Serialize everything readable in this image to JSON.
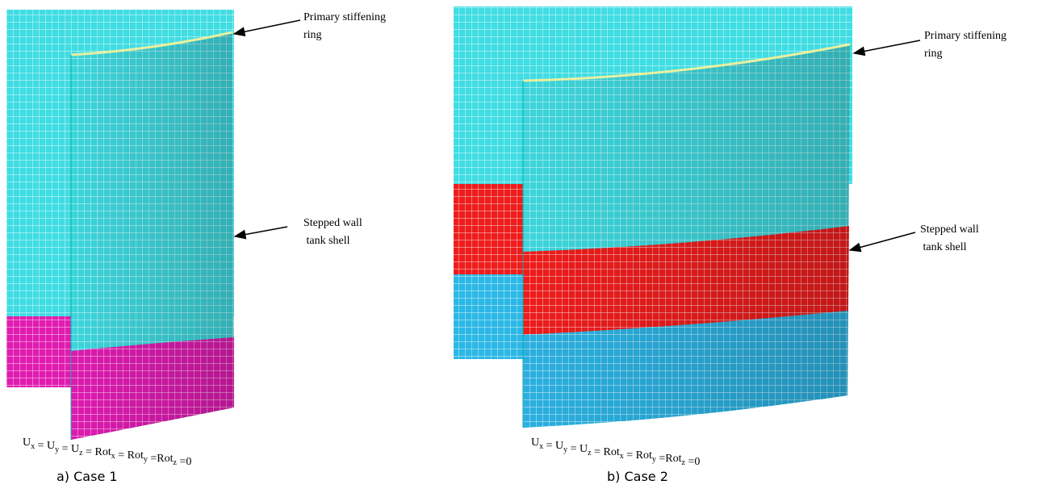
{
  "panels": [
    {
      "ring_label": [
        "Primary stiffening",
        "ring"
      ],
      "shell_label": [
        "Stepped wall",
        " tank shell"
      ],
      "boundary_condition": [
        {
          "text": "U",
          "sub": "x"
        },
        {
          "text": " = U",
          "sub": "y"
        },
        {
          "text": " = U",
          "sub": "z"
        },
        {
          "text": " = Rot",
          "sub": "x"
        },
        {
          "text": " = Rot",
          "sub": "y"
        },
        {
          "text": " =Rot",
          "sub": "z"
        },
        {
          "text": " =0"
        }
      ],
      "caption": "a) Case 1"
    },
    {
      "ring_label": [
        "Primary stiffening",
        "ring"
      ],
      "shell_label": [
        "Stepped wall",
        " tank shell"
      ],
      "boundary_condition": [
        {
          "text": "U",
          "sub": "x"
        },
        {
          "text": " = U",
          "sub": "y"
        },
        {
          "text": " = U",
          "sub": "z"
        },
        {
          "text": " = Rot",
          "sub": "x"
        },
        {
          "text": " = Rot",
          "sub": "y"
        },
        {
          "text": " =Rot",
          "sub": "z"
        },
        {
          "text": " =0"
        }
      ],
      "caption": "b) Case 2"
    }
  ]
}
